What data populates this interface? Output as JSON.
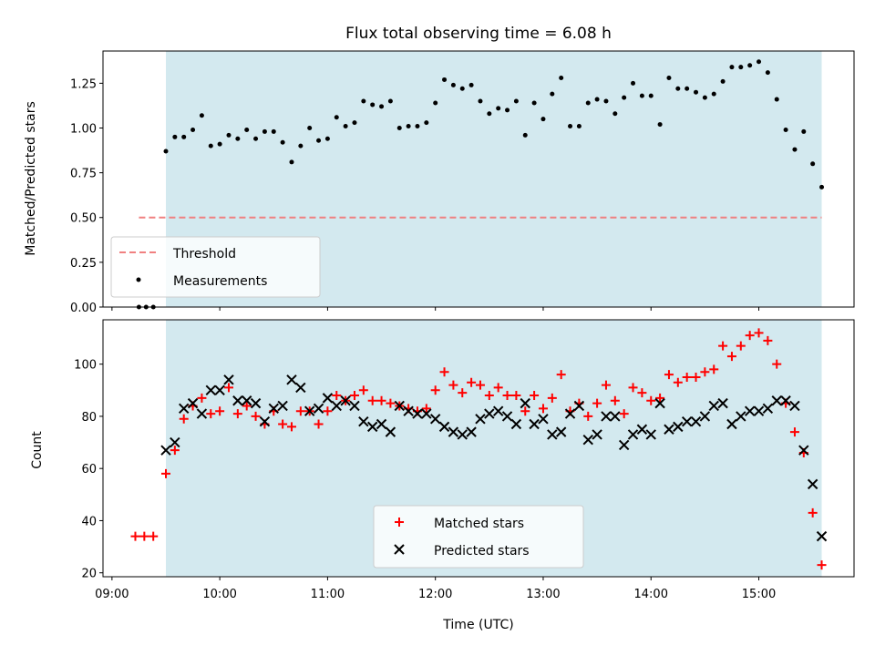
{
  "chart_data": {
    "title": "Flux total observing time = 6.08 h",
    "xlabel": "Time (UTC)",
    "x_ticks": [
      "09:00",
      "10:00",
      "11:00",
      "12:00",
      "13:00",
      "14:00",
      "15:00"
    ],
    "xlim": [
      "08:55",
      "15:53"
    ],
    "shaded_interval": [
      "09:30",
      "15:35"
    ],
    "shade_color": "#d3e9ef",
    "panels": [
      {
        "type": "scatter",
        "ylabel": "Matched/Predicted stars",
        "ylim": [
          0,
          1.43
        ],
        "y_ticks": [
          "0.00",
          "0.25",
          "0.50",
          "0.75",
          "1.00",
          "1.25"
        ],
        "threshold": {
          "name": "Threshold",
          "value": 0.5,
          "x_range": [
            "09:15",
            "15:35"
          ],
          "color": "#f08080"
        },
        "legend": [
          "Threshold",
          "Measurements"
        ],
        "legend_position": "lower-left",
        "series": [
          {
            "name": "Measurements",
            "color": "#000000",
            "marker": "dot",
            "points": [
              [
                "09:15",
                0.0
              ],
              [
                "09:19",
                0.0
              ],
              [
                "09:23",
                0.0
              ],
              [
                "09:30",
                0.87
              ],
              [
                "09:35",
                0.95
              ],
              [
                "09:40",
                0.95
              ],
              [
                "09:45",
                0.99
              ],
              [
                "09:50",
                1.07
              ],
              [
                "09:55",
                0.9
              ],
              [
                "10:00",
                0.91
              ],
              [
                "10:05",
                0.96
              ],
              [
                "10:10",
                0.94
              ],
              [
                "10:15",
                0.99
              ],
              [
                "10:20",
                0.94
              ],
              [
                "10:25",
                0.98
              ],
              [
                "10:30",
                0.98
              ],
              [
                "10:35",
                0.92
              ],
              [
                "10:40",
                0.81
              ],
              [
                "10:45",
                0.9
              ],
              [
                "10:50",
                1.0
              ],
              [
                "10:55",
                0.93
              ],
              [
                "11:00",
                0.94
              ],
              [
                "11:05",
                1.06
              ],
              [
                "11:10",
                1.01
              ],
              [
                "11:15",
                1.03
              ],
              [
                "11:20",
                1.15
              ],
              [
                "11:25",
                1.13
              ],
              [
                "11:30",
                1.12
              ],
              [
                "11:35",
                1.15
              ],
              [
                "11:40",
                1.0
              ],
              [
                "11:45",
                1.01
              ],
              [
                "11:50",
                1.01
              ],
              [
                "11:55",
                1.03
              ],
              [
                "12:00",
                1.14
              ],
              [
                "12:05",
                1.27
              ],
              [
                "12:10",
                1.24
              ],
              [
                "12:15",
                1.22
              ],
              [
                "12:20",
                1.24
              ],
              [
                "12:25",
                1.15
              ],
              [
                "12:30",
                1.08
              ],
              [
                "12:35",
                1.11
              ],
              [
                "12:40",
                1.1
              ],
              [
                "12:45",
                1.15
              ],
              [
                "12:50",
                0.96
              ],
              [
                "12:55",
                1.14
              ],
              [
                "13:00",
                1.05
              ],
              [
                "13:05",
                1.19
              ],
              [
                "13:10",
                1.28
              ],
              [
                "13:15",
                1.01
              ],
              [
                "13:20",
                1.01
              ],
              [
                "13:25",
                1.14
              ],
              [
                "13:30",
                1.16
              ],
              [
                "13:35",
                1.15
              ],
              [
                "13:40",
                1.08
              ],
              [
                "13:45",
                1.17
              ],
              [
                "13:50",
                1.25
              ],
              [
                "13:55",
                1.18
              ],
              [
                "14:00",
                1.18
              ],
              [
                "14:05",
                1.02
              ],
              [
                "14:10",
                1.28
              ],
              [
                "14:15",
                1.22
              ],
              [
                "14:20",
                1.22
              ],
              [
                "14:25",
                1.2
              ],
              [
                "14:30",
                1.17
              ],
              [
                "14:35",
                1.19
              ],
              [
                "14:40",
                1.26
              ],
              [
                "14:45",
                1.34
              ],
              [
                "14:50",
                1.34
              ],
              [
                "14:55",
                1.35
              ],
              [
                "15:00",
                1.37
              ],
              [
                "15:05",
                1.31
              ],
              [
                "15:10",
                1.16
              ],
              [
                "15:15",
                0.99
              ],
              [
                "15:20",
                0.88
              ],
              [
                "15:25",
                0.98
              ],
              [
                "15:30",
                0.8
              ],
              [
                "15:35",
                0.67
              ]
            ]
          }
        ]
      },
      {
        "type": "scatter",
        "ylabel": "Count",
        "ylim": [
          18.5,
          117
        ],
        "y_ticks": [
          "20",
          "40",
          "60",
          "80",
          "100"
        ],
        "legend": [
          "Matched stars",
          "Predicted stars"
        ],
        "legend_position": "lower-center",
        "series": [
          {
            "name": "Matched stars",
            "color": "#ff0000",
            "marker": "plus",
            "points": [
              [
                "09:13",
                34
              ],
              [
                "09:18",
                34
              ],
              [
                "09:23",
                34
              ],
              [
                "09:30",
                58
              ],
              [
                "09:35",
                67
              ],
              [
                "09:40",
                79
              ],
              [
                "09:45",
                84
              ],
              [
                "09:50",
                87
              ],
              [
                "09:55",
                81
              ],
              [
                "10:00",
                82
              ],
              [
                "10:05",
                91
              ],
              [
                "10:10",
                81
              ],
              [
                "10:15",
                84
              ],
              [
                "10:20",
                80
              ],
              [
                "10:25",
                77
              ],
              [
                "10:30",
                82
              ],
              [
                "10:35",
                77
              ],
              [
                "10:40",
                76
              ],
              [
                "10:45",
                82
              ],
              [
                "10:50",
                82
              ],
              [
                "10:55",
                77
              ],
              [
                "11:00",
                82
              ],
              [
                "11:05",
                88
              ],
              [
                "11:10",
                86
              ],
              [
                "11:15",
                88
              ],
              [
                "11:20",
                90
              ],
              [
                "11:25",
                86
              ],
              [
                "11:30",
                86
              ],
              [
                "11:35",
                85
              ],
              [
                "11:40",
                84
              ],
              [
                "11:45",
                83
              ],
              [
                "11:50",
                82
              ],
              [
                "11:55",
                83
              ],
              [
                "12:00",
                90
              ],
              [
                "12:05",
                97
              ],
              [
                "12:10",
                92
              ],
              [
                "12:15",
                89
              ],
              [
                "12:20",
                93
              ],
              [
                "12:25",
                92
              ],
              [
                "12:30",
                88
              ],
              [
                "12:35",
                91
              ],
              [
                "12:40",
                88
              ],
              [
                "12:45",
                88
              ],
              [
                "12:50",
                82
              ],
              [
                "12:55",
                88
              ],
              [
                "13:00",
                83
              ],
              [
                "13:05",
                87
              ],
              [
                "13:10",
                96
              ],
              [
                "13:15",
                82
              ],
              [
                "13:20",
                85
              ],
              [
                "13:25",
                80
              ],
              [
                "13:30",
                85
              ],
              [
                "13:35",
                92
              ],
              [
                "13:40",
                86
              ],
              [
                "13:45",
                81
              ],
              [
                "13:50",
                91
              ],
              [
                "13:55",
                89
              ],
              [
                "14:00",
                86
              ],
              [
                "14:05",
                87
              ],
              [
                "14:10",
                96
              ],
              [
                "14:15",
                93
              ],
              [
                "14:20",
                95
              ],
              [
                "14:25",
                95
              ],
              [
                "14:30",
                97
              ],
              [
                "14:35",
                98
              ],
              [
                "14:40",
                107
              ],
              [
                "14:45",
                103
              ],
              [
                "14:50",
                107
              ],
              [
                "14:55",
                111
              ],
              [
                "15:00",
                112
              ],
              [
                "15:05",
                109
              ],
              [
                "15:10",
                100
              ],
              [
                "15:15",
                85
              ],
              [
                "15:20",
                74
              ],
              [
                "15:25",
                66
              ],
              [
                "15:30",
                43
              ],
              [
                "15:35",
                23
              ]
            ]
          },
          {
            "name": "Predicted stars",
            "color": "#000000",
            "marker": "x",
            "points": [
              [
                "09:30",
                67
              ],
              [
                "09:35",
                70
              ],
              [
                "09:40",
                83
              ],
              [
                "09:45",
                85
              ],
              [
                "09:50",
                81
              ],
              [
                "09:55",
                90
              ],
              [
                "10:00",
                90
              ],
              [
                "10:05",
                94
              ],
              [
                "10:10",
                86
              ],
              [
                "10:15",
                86
              ],
              [
                "10:20",
                85
              ],
              [
                "10:25",
                78
              ],
              [
                "10:30",
                83
              ],
              [
                "10:35",
                84
              ],
              [
                "10:40",
                94
              ],
              [
                "10:45",
                91
              ],
              [
                "10:50",
                82
              ],
              [
                "10:55",
                83
              ],
              [
                "11:00",
                87
              ],
              [
                "11:05",
                84
              ],
              [
                "11:10",
                86
              ],
              [
                "11:15",
                84
              ],
              [
                "11:20",
                78
              ],
              [
                "11:25",
                76
              ],
              [
                "11:30",
                77
              ],
              [
                "11:35",
                74
              ],
              [
                "11:40",
                84
              ],
              [
                "11:45",
                82
              ],
              [
                "11:50",
                81
              ],
              [
                "11:55",
                81
              ],
              [
                "12:00",
                79
              ],
              [
                "12:05",
                76
              ],
              [
                "12:10",
                74
              ],
              [
                "12:15",
                73
              ],
              [
                "12:20",
                74
              ],
              [
                "12:25",
                79
              ],
              [
                "12:30",
                81
              ],
              [
                "12:35",
                82
              ],
              [
                "12:40",
                80
              ],
              [
                "12:45",
                77
              ],
              [
                "12:50",
                85
              ],
              [
                "12:55",
                77
              ],
              [
                "13:00",
                79
              ],
              [
                "13:05",
                73
              ],
              [
                "13:10",
                74
              ],
              [
                "13:15",
                81
              ],
              [
                "13:20",
                84
              ],
              [
                "13:25",
                71
              ],
              [
                "13:30",
                73
              ],
              [
                "13:35",
                80
              ],
              [
                "13:40",
                80
              ],
              [
                "13:45",
                69
              ],
              [
                "13:50",
                73
              ],
              [
                "13:55",
                75
              ],
              [
                "14:00",
                73
              ],
              [
                "14:05",
                85
              ],
              [
                "14:10",
                75
              ],
              [
                "14:15",
                76
              ],
              [
                "14:20",
                78
              ],
              [
                "14:25",
                78
              ],
              [
                "14:30",
                80
              ],
              [
                "14:35",
                84
              ],
              [
                "14:40",
                85
              ],
              [
                "14:45",
                77
              ],
              [
                "14:50",
                80
              ],
              [
                "14:55",
                82
              ],
              [
                "15:00",
                82
              ],
              [
                "15:05",
                83
              ],
              [
                "15:10",
                86
              ],
              [
                "15:15",
                86
              ],
              [
                "15:20",
                84
              ],
              [
                "15:25",
                67
              ],
              [
                "15:30",
                54
              ],
              [
                "15:35",
                34
              ]
            ]
          }
        ]
      }
    ]
  }
}
